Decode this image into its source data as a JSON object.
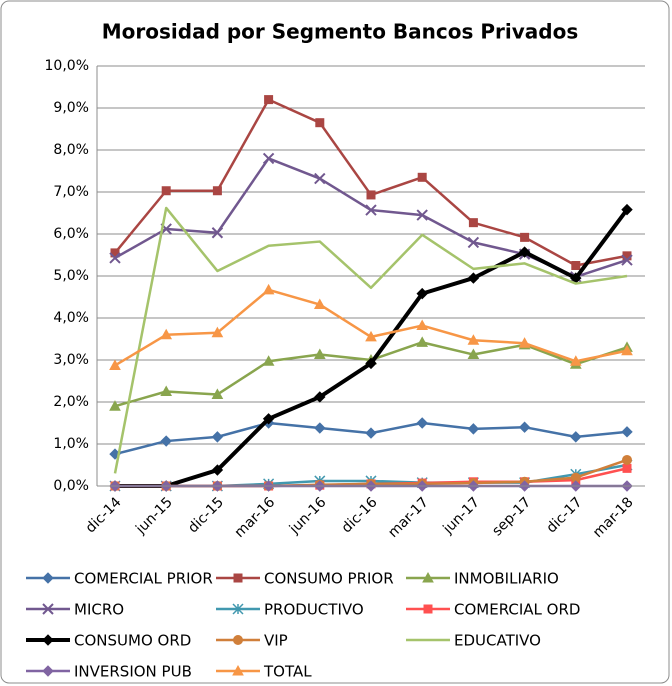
{
  "chart_data": {
    "type": "line",
    "title": "Morosidad por Segmento Bancos Privados",
    "categories": [
      "dic-14",
      "jun-15",
      "dic-15",
      "mar-16",
      "jun-16",
      "dic-16",
      "mar-17",
      "jun-17",
      "sep-17",
      "dic-17",
      "mar-18"
    ],
    "ylim": [
      0,
      10
    ],
    "yticks": [
      {
        "value": 0,
        "label": "0,0%"
      },
      {
        "value": 1,
        "label": "1,0%"
      },
      {
        "value": 2,
        "label": "2,0%"
      },
      {
        "value": 3,
        "label": "3,0%"
      },
      {
        "value": 4,
        "label": "4,0%"
      },
      {
        "value": 5,
        "label": "5,0%"
      },
      {
        "value": 6,
        "label": "6,0%"
      },
      {
        "value": 7,
        "label": "7,0%"
      },
      {
        "value": 8,
        "label": "8,0%"
      },
      {
        "value": 9,
        "label": "9,0%"
      },
      {
        "value": 10,
        "label": "10,0%"
      }
    ],
    "grid": true,
    "legend": "bottom",
    "series": [
      {
        "name": "COMERCIAL PRIOR",
        "color": "#4572a7",
        "marker": "diamond",
        "line_width": 2.5,
        "values": [
          0.76,
          1.07,
          1.17,
          1.5,
          1.38,
          1.26,
          1.5,
          1.36,
          1.4,
          1.17,
          1.29
        ]
      },
      {
        "name": "CONSUMO PRIOR",
        "color": "#aa4643",
        "marker": "square",
        "line_width": 2.5,
        "values": [
          5.55,
          7.03,
          7.03,
          9.2,
          8.65,
          6.93,
          7.35,
          6.27,
          5.92,
          5.25,
          5.48
        ]
      },
      {
        "name": "INMOBILIARIO",
        "color": "#89a54e",
        "marker": "triangle",
        "line_width": 2.5,
        "values": [
          1.9,
          2.25,
          2.18,
          2.97,
          3.13,
          3.0,
          3.42,
          3.13,
          3.36,
          2.9,
          3.3
        ]
      },
      {
        "name": "MICRO",
        "color": "#71588f",
        "marker": "x",
        "line_width": 2.5,
        "values": [
          5.43,
          6.12,
          6.03,
          7.8,
          7.32,
          6.57,
          6.45,
          5.8,
          5.52,
          4.98,
          5.38
        ]
      },
      {
        "name": "PRODUCTIVO",
        "color": "#4198af",
        "marker": "star",
        "line_width": 2.5,
        "values": [
          0,
          0,
          0,
          0.05,
          0.12,
          0.12,
          0.08,
          0.08,
          0.08,
          0.28,
          0.5
        ]
      },
      {
        "name": "COMERCIAL ORD",
        "color": "#ff5050",
        "marker": "square",
        "line_width": 2.5,
        "values": [
          0,
          0,
          0,
          0,
          0.02,
          0.05,
          0.07,
          0.1,
          0.1,
          0.14,
          0.42
        ]
      },
      {
        "name": "CONSUMO ORD",
        "color": "#000000",
        "marker": "diamond",
        "line_width": 4,
        "values": [
          0,
          0,
          0.38,
          1.6,
          2.12,
          2.92,
          4.58,
          4.95,
          5.57,
          4.95,
          6.58
        ]
      },
      {
        "name": "VIP",
        "color": "#d07f3a",
        "marker": "circle",
        "line_width": 2.5,
        "values": [
          0,
          0,
          0,
          0,
          0.03,
          0.05,
          0.05,
          0.07,
          0.1,
          0.2,
          0.62
        ]
      },
      {
        "name": "EDUCATIVO",
        "color": "#a5c36b",
        "marker": "none",
        "line_width": 2.5,
        "values": [
          0.3,
          6.62,
          5.12,
          5.72,
          5.82,
          4.72,
          5.98,
          5.17,
          5.3,
          4.82,
          5.0
        ]
      },
      {
        "name": "INVERSION PUB",
        "color": "#8064a2",
        "marker": "diamond",
        "line_width": 2.5,
        "values": [
          0,
          0,
          0,
          0,
          0,
          0,
          0,
          0,
          0,
          0,
          0
        ]
      },
      {
        "name": "TOTAL",
        "color": "#f79646",
        "marker": "triangle",
        "line_width": 2.5,
        "values": [
          2.87,
          3.6,
          3.65,
          4.67,
          4.32,
          3.55,
          3.82,
          3.47,
          3.4,
          2.97,
          3.22
        ]
      }
    ]
  }
}
